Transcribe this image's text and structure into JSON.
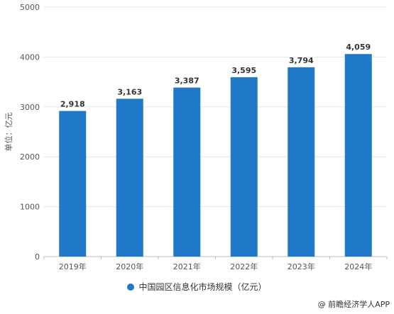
{
  "chart_data": {
    "type": "bar",
    "title": "",
    "xlabel": "",
    "ylabel": "单位：亿元",
    "categories": [
      "2019年",
      "2020年",
      "2021年",
      "2022年",
      "2023年",
      "2024年"
    ],
    "series": [
      {
        "name": "中国园区信息化市场规模（亿元）",
        "values": [
          2918,
          3163,
          3387,
          3595,
          3794,
          4059
        ],
        "labels": [
          "2,918",
          "3,163",
          "3,387",
          "3,595",
          "3,794",
          "4,059"
        ],
        "color": "#1f78c8"
      }
    ],
    "ylim": [
      0,
      5000
    ],
    "yticks": [
      0,
      1000,
      2000,
      3000,
      4000,
      5000
    ],
    "grid": true,
    "legend_position": "bottom"
  },
  "source": "@ 前瞻经济学人APP"
}
